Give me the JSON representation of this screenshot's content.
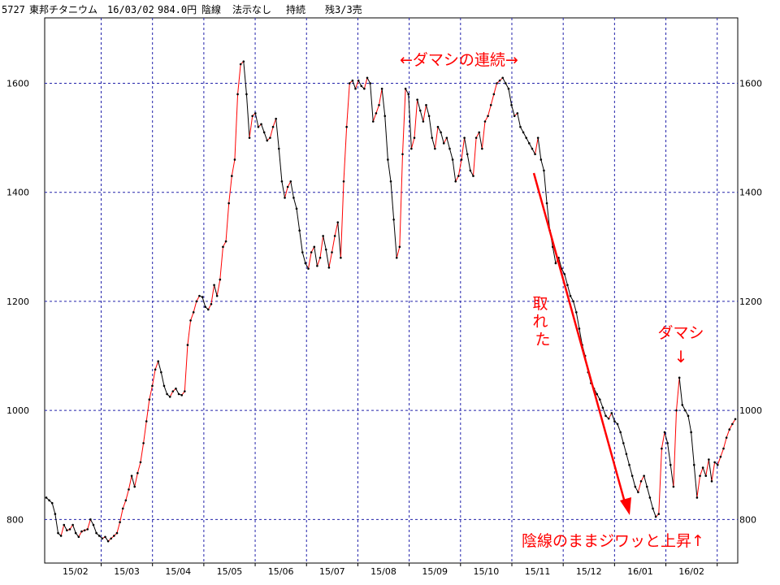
{
  "header": {
    "code": "5727",
    "name": "東邦チタニウム",
    "date": "16/03/02",
    "price": "984.0円",
    "signal": "陰線",
    "rule": "法示なし",
    "status": "持続",
    "remaining": "残3/3売"
  },
  "annotations": {
    "top": "←ダマシの連続→",
    "taken": "取れた",
    "dama": "ダマシ",
    "down_arrow": "↓",
    "bottom": "陰線のままジワッと上昇↑"
  },
  "colors": {
    "grid": "#2222aa",
    "up_segment": "#ff0000",
    "down_segment": "#000000",
    "annotation": "#ff0000"
  },
  "chart_data": {
    "type": "line",
    "title": "",
    "ylim": [
      720,
      1720
    ],
    "y_ticks": [
      "800",
      "1000",
      "1200",
      "1400",
      "1600"
    ],
    "x_ticks": [
      "15/02",
      "15/03",
      "15/04",
      "15/05",
      "15/06",
      "15/07",
      "15/08",
      "15/09",
      "15/10",
      "15/11",
      "15/12",
      "16/01",
      "16/02"
    ],
    "grid": true,
    "series": [
      {
        "values": [
          840,
          835,
          830,
          810,
          775,
          770,
          790,
          780,
          782,
          790,
          775,
          768,
          778,
          780,
          782,
          800,
          790,
          775,
          770,
          765,
          768,
          760,
          765,
          770,
          775,
          795,
          820,
          835,
          855,
          880,
          860,
          885,
          905,
          940,
          980,
          1020,
          1045,
          1075,
          1090,
          1070,
          1045,
          1030,
          1025,
          1035,
          1040,
          1030,
          1028,
          1035,
          1120,
          1165,
          1180,
          1200,
          1210,
          1208,
          1190,
          1185,
          1195,
          1230,
          1210,
          1240,
          1300,
          1310,
          1380,
          1430,
          1460,
          1580,
          1635,
          1640,
          1580,
          1500,
          1540,
          1545,
          1520,
          1525,
          1510,
          1495,
          1500,
          1520,
          1535,
          1480,
          1420,
          1390,
          1410,
          1420,
          1390,
          1370,
          1330,
          1290,
          1270,
          1260,
          1290,
          1300,
          1265,
          1280,
          1320,
          1295,
          1262,
          1290,
          1320,
          1345,
          1280,
          1420,
          1520,
          1600,
          1605,
          1590,
          1605,
          1595,
          1590,
          1610,
          1600,
          1530,
          1545,
          1560,
          1590,
          1540,
          1460,
          1420,
          1350,
          1280,
          1300,
          1470,
          1590,
          1580,
          1480,
          1500,
          1570,
          1550,
          1530,
          1560,
          1540,
          1500,
          1480,
          1520,
          1510,
          1490,
          1500,
          1480,
          1460,
          1420,
          1430,
          1460,
          1500,
          1470,
          1440,
          1430,
          1500,
          1510,
          1480,
          1530,
          1540,
          1560,
          1580,
          1600,
          1605,
          1610,
          1600,
          1590,
          1560,
          1540,
          1545,
          1520,
          1510,
          1500,
          1490,
          1480,
          1470,
          1500,
          1460,
          1440,
          1380,
          1330,
          1300,
          1270,
          1280,
          1260,
          1250,
          1230,
          1210,
          1200,
          1180,
          1150,
          1120,
          1100,
          1070,
          1050,
          1040,
          1030,
          1020,
          1005,
          990,
          985,
          995,
          980,
          975,
          960,
          940,
          920,
          900,
          880,
          860,
          850,
          870,
          880,
          860,
          840,
          820,
          805,
          810,
          930,
          960,
          940,
          900,
          860,
          1000,
          1060,
          1010,
          1000,
          990,
          960,
          900,
          840,
          880,
          895,
          880,
          910,
          870,
          905,
          900,
          915,
          930,
          950,
          965,
          975,
          984
        ]
      }
    ]
  }
}
